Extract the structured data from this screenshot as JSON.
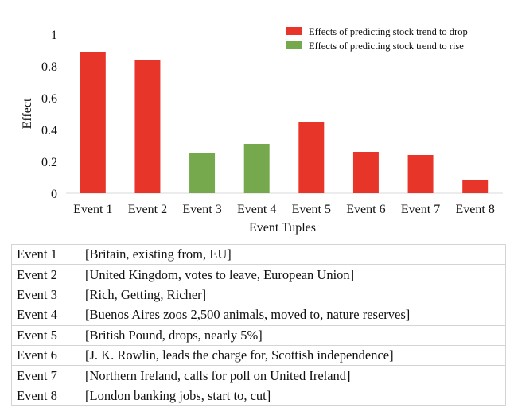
{
  "chart_data": {
    "type": "bar",
    "categories": [
      "Event 1",
      "Event 2",
      "Event 3",
      "Event 4",
      "Event 5",
      "Event 6",
      "Event 7",
      "Event 8"
    ],
    "values": [
      0.89,
      0.84,
      0.255,
      0.31,
      0.445,
      0.26,
      0.24,
      0.085
    ],
    "series_membership": [
      "drop",
      "drop",
      "rise",
      "rise",
      "drop",
      "drop",
      "drop",
      "drop"
    ],
    "series": [
      {
        "key": "drop",
        "name": "Effects of predicting stock trend to drop",
        "color": "#e8352a"
      },
      {
        "key": "rise",
        "name": "Effects of predicting stock trend to rise",
        "color": "#76a84e"
      }
    ],
    "xlabel": "Event Tuples",
    "ylabel": "Effect",
    "ylim": [
      0,
      1
    ],
    "yticks": [
      "0",
      "0.2",
      "0.4",
      "0.6",
      "0.8",
      "1"
    ],
    "ytick_values": [
      0,
      0.2,
      0.4,
      0.6,
      0.8,
      1
    ],
    "grid": false,
    "legend_position": "top-right"
  },
  "table": {
    "rows": [
      {
        "event": "Event 1",
        "tuple": "[Britain, existing from, EU]"
      },
      {
        "event": "Event 2",
        "tuple": "[United Kingdom, votes to leave, European Union]"
      },
      {
        "event": "Event 3",
        "tuple": "[Rich, Getting, Richer]"
      },
      {
        "event": "Event 4",
        "tuple": "[Buenos Aires zoos 2,500 animals, moved to, nature reserves]"
      },
      {
        "event": "Event 5",
        "tuple": "[British Pound, drops, nearly 5%]"
      },
      {
        "event": "Event 6",
        "tuple": "[J. K. Rowlin, leads the charge for, Scottish independence]"
      },
      {
        "event": "Event 7",
        "tuple": "[Northern Ireland, calls for poll on United Ireland]"
      },
      {
        "event": "Event 8",
        "tuple": "[London banking jobs, start to, cut]"
      }
    ]
  }
}
